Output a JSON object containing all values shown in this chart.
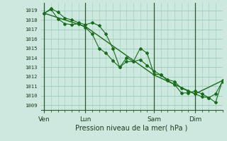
{
  "bg_color": "#cce8df",
  "grid_color": "#99ccbb",
  "line_color": "#1a6b1a",
  "marker_color": "#1a6b1a",
  "ylim": [
    1008.5,
    1019.8
  ],
  "yticks": [
    1009,
    1010,
    1011,
    1012,
    1013,
    1014,
    1015,
    1016,
    1017,
    1018,
    1019
  ],
  "xtick_labels": [
    "Ven",
    "Lun",
    "Sam",
    "Dim"
  ],
  "xtick_positions": [
    0,
    24,
    64,
    88
  ],
  "xlabel": "Pression niveau de la mer( hPa )",
  "xlim": [
    -2,
    104
  ],
  "line1_x": [
    0,
    4,
    8,
    12,
    16,
    20,
    24,
    28,
    32,
    36,
    40,
    44,
    48,
    52,
    56,
    60,
    64,
    68,
    72,
    76,
    80,
    84,
    88,
    92,
    96,
    100,
    104
  ],
  "line1_y": [
    1018.7,
    1019.2,
    1018.8,
    1018.2,
    1018.0,
    1017.7,
    1017.5,
    1017.7,
    1017.4,
    1016.5,
    1015.0,
    1013.0,
    1014.0,
    1013.6,
    1015.0,
    1014.5,
    1012.3,
    1012.2,
    1011.6,
    1011.2,
    1010.3,
    1010.3,
    1010.5,
    1010.2,
    1009.8,
    1010.2,
    1011.5
  ],
  "line2_x": [
    0,
    4,
    8,
    12,
    16,
    20,
    24,
    28,
    32,
    36,
    40,
    44,
    48,
    52,
    56,
    60,
    64,
    68,
    72,
    76,
    80,
    84,
    88,
    92,
    96,
    100,
    104
  ],
  "line2_y": [
    1018.7,
    1019.1,
    1018.1,
    1017.6,
    1017.5,
    1017.6,
    1017.2,
    1016.5,
    1015.0,
    1014.5,
    1013.7,
    1013.0,
    1013.6,
    1013.6,
    1013.8,
    1013.2,
    1012.6,
    1012.2,
    1011.7,
    1011.5,
    1010.8,
    1010.5,
    1010.2,
    1009.9,
    1009.8,
    1009.3,
    1011.6
  ],
  "line3_x": [
    0,
    24,
    64,
    88,
    104
  ],
  "line3_y": [
    1018.7,
    1017.3,
    1012.2,
    1010.2,
    1011.6
  ],
  "vline_positions": [
    0,
    24,
    64,
    88
  ]
}
